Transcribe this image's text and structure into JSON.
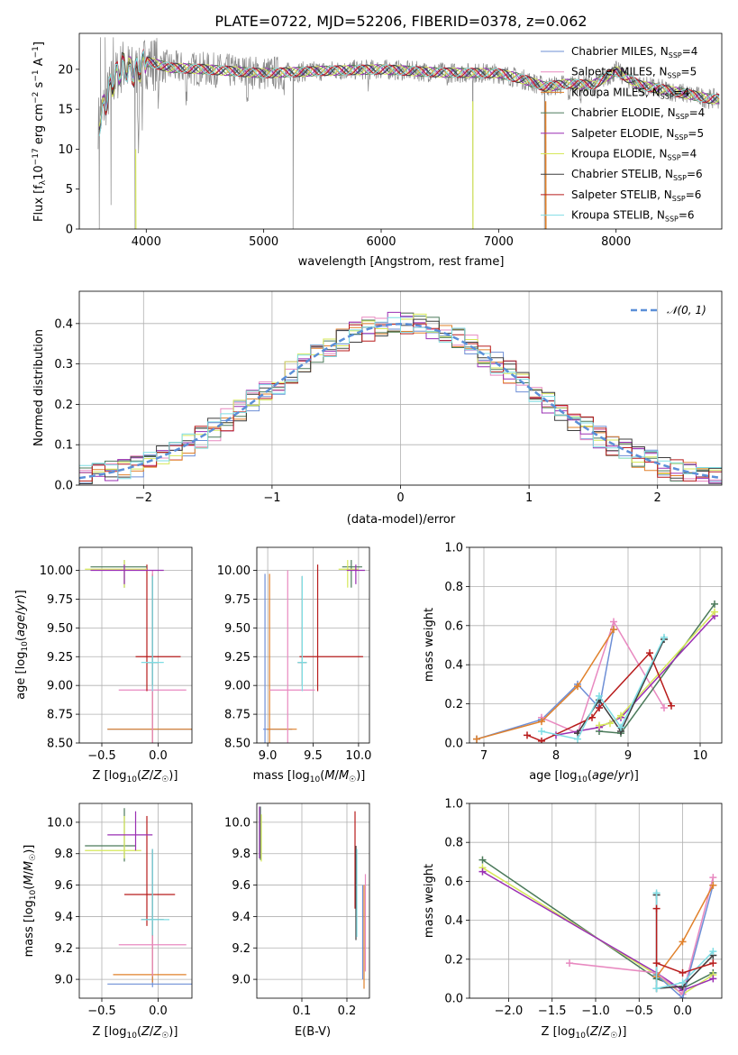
{
  "colors": {
    "chabrier_miles": "#6e8fd6",
    "salpeter_miles": "#e889c0",
    "kroupa_miles": "#e0802a",
    "chabrier_elodie": "#4b7a5a",
    "salpeter_elodie": "#9a2fb3",
    "kroupa_elodie": "#d6e85a",
    "chabrier_stelib": "#3d3d3d",
    "salpeter_stelib": "#b81c1c",
    "kroupa_stelib": "#7fdde4",
    "data_grey": "#888888",
    "normal_dash": "#5b8fd8"
  },
  "chart_data": [
    {
      "id": "spectrum",
      "type": "line",
      "title": "PLATE=0722, MJD=52206, FIBERID=0378, z=0.062",
      "xlabel": "wavelength [Angstrom, rest frame]",
      "ylabel": "Flux [f_λ 10^-17 erg cm^-2 s^-1 A^-1]",
      "xlim": [
        3430,
        8900
      ],
      "ylim": [
        0,
        24.5
      ],
      "xticks": [
        4000,
        5000,
        6000,
        7000,
        8000
      ],
      "yticks": [
        0,
        5,
        10,
        15,
        20
      ],
      "grid": false,
      "legend_position": "upper right",
      "series": [
        {
          "name": "Chabrier MILES, N_SSP=4",
          "color_key": "chabrier_miles"
        },
        {
          "name": "Salpeter MILES, N_SSP=5",
          "color_key": "salpeter_miles"
        },
        {
          "name": "Kroupa MILES, N_SSP=4",
          "color_key": "kroupa_miles"
        },
        {
          "name": "Chabrier ELODIE, N_SSP=4",
          "color_key": "chabrier_elodie"
        },
        {
          "name": "Salpeter ELODIE, N_SSP=5",
          "color_key": "salpeter_elodie"
        },
        {
          "name": "Kroupa ELODIE, N_SSP=4",
          "color_key": "kroupa_elodie"
        },
        {
          "name": "Chabrier STELIB, N_SSP=6",
          "color_key": "chabrier_stelib"
        },
        {
          "name": "Salpeter STELIB, N_SSP=6",
          "color_key": "salpeter_stelib"
        },
        {
          "name": "Kroupa STELIB, N_SSP=6",
          "color_key": "kroupa_stelib"
        }
      ],
      "continuum": {
        "x": [
          3600,
          3700,
          3800,
          3900,
          4000,
          4200,
          4500,
          5000,
          5500,
          6000,
          6500,
          7000,
          7200,
          7400,
          7600,
          7800,
          8000,
          8200,
          8500,
          8800
        ],
        "y": [
          13.5,
          18,
          20.5,
          19.5,
          21,
          20.2,
          20,
          19.5,
          19.8,
          20,
          19.6,
          19.5,
          18.8,
          17.8,
          18.2,
          18,
          19.8,
          18,
          17.2,
          16.3
        ]
      }
    },
    {
      "id": "residuals",
      "type": "step",
      "xlabel": "(data-model)/error",
      "ylabel": "Normed distribution",
      "xlim": [
        -2.5,
        2.5
      ],
      "ylim": [
        0,
        0.48
      ],
      "xticks": [
        -2,
        -1,
        0,
        1,
        2
      ],
      "yticks": [
        0.0,
        0.1,
        0.2,
        0.3,
        0.4
      ],
      "grid": true,
      "legend": [
        "N(0,1)"
      ],
      "legend_position": "upper right",
      "bin_width": 0.1
    },
    {
      "id": "age_vs_Z",
      "type": "errorbar",
      "xlabel": "Z [log10(Z/Z☉)]",
      "ylabel": "age [log10(age/yr)]",
      "xlim": [
        -0.7,
        0.3
      ],
      "ylim": [
        8.5,
        10.2
      ],
      "xticks": [
        -0.5,
        0.0
      ],
      "yticks": [
        8.5,
        8.75,
        9.0,
        9.25,
        9.5,
        9.75,
        10.0
      ],
      "grid": true,
      "points": [
        {
          "c": "chabrier_miles",
          "x": -0.05,
          "xe": [
            0.4,
            0.35
          ],
          "y": 8.62,
          "ye": [
            0.12,
            1.35
          ]
        },
        {
          "c": "kroupa_miles",
          "x": -0.05,
          "xe": [
            0.4,
            0.35
          ],
          "y": 8.62,
          "ye": [
            0.12,
            1.35
          ]
        },
        {
          "c": "salpeter_miles",
          "x": -0.05,
          "xe": [
            0.3,
            0.3
          ],
          "y": 8.96,
          "ye": [
            0.46,
            1.04
          ]
        },
        {
          "c": "salpeter_stelib",
          "x": -0.1,
          "xe": [
            0.1,
            0.3
          ],
          "y": 9.25,
          "ye": [
            0.3,
            0.8
          ]
        },
        {
          "c": "chabrier_elodie",
          "x": -0.3,
          "xe": [
            0.3,
            0.2
          ],
          "y": 10.03,
          "ye": [
            0.18,
            0.06
          ]
        },
        {
          "c": "kroupa_elodie",
          "x": -0.3,
          "xe": [
            0.35,
            0.2
          ],
          "y": 10.01,
          "ye": [
            0.16,
            0.08
          ]
        },
        {
          "c": "salpeter_elodie",
          "x": -0.3,
          "xe": [
            0.3,
            0.35
          ],
          "y": 10.0,
          "ye": [
            0.12,
            0.05
          ]
        },
        {
          "c": "chabrier_stelib",
          "x": -0.05,
          "xe": [
            0.05,
            0.05
          ],
          "y": 9.2,
          "ye": [
            0.2,
            0.75
          ]
        },
        {
          "c": "kroupa_stelib",
          "x": -0.05,
          "xe": [
            0.1,
            0.1
          ],
          "y": 9.2,
          "ye": [
            0.25,
            0.75
          ]
        }
      ]
    },
    {
      "id": "age_vs_mass",
      "type": "errorbar",
      "xlabel": "mass [log10(M/M☉)]",
      "ylabel": "",
      "xlim": [
        8.88,
        10.12
      ],
      "ylim": [
        8.5,
        10.2
      ],
      "xticks": [
        9.0,
        9.5,
        10.0
      ],
      "yticks": [
        8.5,
        8.75,
        9.0,
        9.25,
        9.5,
        9.75,
        10.0
      ],
      "grid": true,
      "points": [
        {
          "c": "chabrier_miles",
          "x": 8.97,
          "xe": [
            0.02,
            0.3
          ],
          "y": 8.62,
          "ye": [
            0.12,
            1.35
          ]
        },
        {
          "c": "kroupa_miles",
          "x": 9.02,
          "xe": [
            0.03,
            0.3
          ],
          "y": 8.62,
          "ye": [
            0.12,
            1.35
          ]
        },
        {
          "c": "salpeter_miles",
          "x": 9.22,
          "xe": [
            0.2,
            0.3
          ],
          "y": 8.96,
          "ye": [
            0.46,
            1.04
          ]
        },
        {
          "c": "salpeter_stelib",
          "x": 9.55,
          "xe": [
            0.2,
            0.5
          ],
          "y": 9.25,
          "ye": [
            0.3,
            0.8
          ]
        },
        {
          "c": "chabrier_stelib",
          "x": 9.38,
          "xe": [
            0.05,
            0.05
          ],
          "y": 9.2,
          "ye": [
            0.2,
            0.75
          ]
        },
        {
          "c": "kroupa_stelib",
          "x": 9.38,
          "xe": [
            0.05,
            0.05
          ],
          "y": 9.2,
          "ye": [
            0.25,
            0.75
          ]
        },
        {
          "c": "chabrier_elodie",
          "x": 9.92,
          "xe": [
            0.1,
            0.12
          ],
          "y": 10.03,
          "ye": [
            0.18,
            0.06
          ]
        },
        {
          "c": "kroupa_elodie",
          "x": 9.88,
          "xe": [
            0.1,
            0.12
          ],
          "y": 10.01,
          "ye": [
            0.16,
            0.08
          ]
        },
        {
          "c": "salpeter_elodie",
          "x": 9.97,
          "xe": [
            0.1,
            0.1
          ],
          "y": 10.0,
          "ye": [
            0.12,
            0.05
          ]
        }
      ]
    },
    {
      "id": "weight_vs_age",
      "type": "line",
      "xlabel": "age [log10(age/yr)]",
      "ylabel": "mass weight",
      "xlim": [
        6.8,
        10.3
      ],
      "ylim": [
        0.0,
        1.0
      ],
      "xticks": [
        7,
        8,
        9,
        10
      ],
      "yticks": [
        0.0,
        0.2,
        0.4,
        0.6,
        0.8,
        1.0
      ],
      "grid": true,
      "series": [
        {
          "c": "chabrier_miles",
          "x": [
            6.9,
            7.8,
            8.3,
            8.6,
            8.8
          ],
          "y": [
            0.02,
            0.12,
            0.3,
            0.18,
            0.58
          ]
        },
        {
          "c": "salpeter_miles",
          "x": [
            7.8,
            8.3,
            8.8,
            9.5
          ],
          "y": [
            0.13,
            0.05,
            0.62,
            0.18
          ]
        },
        {
          "c": "kroupa_miles",
          "x": [
            6.9,
            7.8,
            8.3,
            8.8
          ],
          "y": [
            0.02,
            0.11,
            0.29,
            0.58
          ]
        },
        {
          "c": "chabrier_elodie",
          "x": [
            8.6,
            8.9,
            10.2
          ],
          "y": [
            0.06,
            0.05,
            0.71
          ]
        },
        {
          "c": "salpeter_elodie",
          "x": [
            8.0,
            8.6,
            8.9,
            10.2
          ],
          "y": [
            0.04,
            0.08,
            0.13,
            0.65
          ]
        },
        {
          "c": "kroupa_elodie",
          "x": [
            8.6,
            8.75,
            8.9,
            10.2
          ],
          "y": [
            0.09,
            0.1,
            0.14,
            0.67
          ]
        },
        {
          "c": "chabrier_stelib",
          "x": [
            8.3,
            8.6,
            8.9,
            9.5
          ],
          "y": [
            0.05,
            0.22,
            0.06,
            0.53
          ]
        },
        {
          "c": "salpeter_stelib",
          "x": [
            7.6,
            7.8,
            8.5,
            8.6,
            9.3,
            9.6
          ],
          "y": [
            0.04,
            0.01,
            0.13,
            0.18,
            0.46,
            0.19
          ]
        },
        {
          "c": "kroupa_stelib",
          "x": [
            7.8,
            8.3,
            8.6,
            8.9,
            9.5
          ],
          "y": [
            0.06,
            0.02,
            0.24,
            0.08,
            0.54
          ]
        }
      ]
    },
    {
      "id": "mass_vs_Z",
      "type": "errorbar",
      "xlabel": "Z [log10(Z/Z☉)]",
      "ylabel": "mass [log10(M/M☉)]",
      "xlim": [
        -0.7,
        0.3
      ],
      "ylim": [
        8.88,
        10.12
      ],
      "xticks": [
        -0.5,
        0.0
      ],
      "yticks": [
        9.0,
        9.2,
        9.4,
        9.6,
        9.8,
        10.0
      ],
      "grid": true,
      "points": [
        {
          "c": "chabrier_miles",
          "x": -0.05,
          "xe": [
            0.4,
            0.35
          ],
          "y": 8.97,
          "ye": [
            0.02,
            0.65
          ]
        },
        {
          "c": "kroupa_miles",
          "x": -0.05,
          "xe": [
            0.35,
            0.3
          ],
          "y": 9.03,
          "ye": [
            0.05,
            0.55
          ]
        },
        {
          "c": "salpeter_miles",
          "x": -0.05,
          "xe": [
            0.3,
            0.3
          ],
          "y": 9.22,
          "ye": [
            0.2,
            0.6
          ]
        },
        {
          "c": "salpeter_stelib",
          "x": -0.1,
          "xe": [
            0.2,
            0.25
          ],
          "y": 9.54,
          "ye": [
            0.2,
            0.5
          ]
        },
        {
          "c": "chabrier_stelib",
          "x": -0.05,
          "xe": [
            0.1,
            0.1
          ],
          "y": 9.38,
          "ye": [
            0.1,
            0.45
          ]
        },
        {
          "c": "kroupa_stelib",
          "x": -0.05,
          "xe": [
            0.1,
            0.15
          ],
          "y": 9.38,
          "ye": [
            0.1,
            0.45
          ]
        },
        {
          "c": "chabrier_elodie",
          "x": -0.3,
          "xe": [
            0.35,
            0.1
          ],
          "y": 9.85,
          "ye": [
            0.1,
            0.24
          ]
        },
        {
          "c": "kroupa_elodie",
          "x": -0.3,
          "xe": [
            0.35,
            0.15
          ],
          "y": 9.82,
          "ye": [
            0.05,
            0.22
          ]
        },
        {
          "c": "salpeter_elodie",
          "x": -0.2,
          "xe": [
            0.25,
            0.15
          ],
          "y": 9.92,
          "ye": [
            0.1,
            0.15
          ]
        }
      ]
    },
    {
      "id": "mass_vs_ebv",
      "type": "errorbar",
      "xlabel": "E(B-V)",
      "ylabel": "",
      "xlim": [
        0.0,
        0.25
      ],
      "ylim": [
        8.88,
        10.12
      ],
      "xticks": [
        0.1,
        0.2
      ],
      "yticks": [
        9.0,
        9.2,
        9.4,
        9.6,
        9.8,
        10.0
      ],
      "grid": true,
      "points": [
        {
          "c": "chabrier_miles",
          "x": 0.235,
          "xe": [
            0,
            0
          ],
          "y": 9.3,
          "ye": [
            0.3,
            0.3
          ]
        },
        {
          "c": "kroupa_miles",
          "x": 0.238,
          "xe": [
            0,
            0
          ],
          "y": 9.27,
          "ye": [
            0.33,
            0.33
          ]
        },
        {
          "c": "salpeter_miles",
          "x": 0.241,
          "xe": [
            0,
            0
          ],
          "y": 9.35,
          "ye": [
            0.3,
            0.32
          ]
        },
        {
          "c": "salpeter_stelib",
          "x": 0.218,
          "xe": [
            0,
            0
          ],
          "y": 9.75,
          "ye": [
            0.3,
            0.32
          ]
        },
        {
          "c": "chabrier_stelib",
          "x": 0.22,
          "xe": [
            0,
            0
          ],
          "y": 9.55,
          "ye": [
            0.3,
            0.3
          ]
        },
        {
          "c": "kroupa_stelib",
          "x": 0.222,
          "xe": [
            0,
            0
          ],
          "y": 9.55,
          "ye": [
            0.28,
            0.28
          ]
        },
        {
          "c": "chabrier_elodie",
          "x": 0.008,
          "xe": [
            0,
            0
          ],
          "y": 9.93,
          "ye": [
            0.17,
            0.17
          ]
        },
        {
          "c": "kroupa_elodie",
          "x": 0.01,
          "xe": [
            0,
            0
          ],
          "y": 9.9,
          "ye": [
            0.15,
            0.15
          ]
        },
        {
          "c": "salpeter_elodie",
          "x": 0.006,
          "xe": [
            0,
            0
          ],
          "y": 9.94,
          "ye": [
            0.17,
            0.16
          ]
        }
      ]
    },
    {
      "id": "weight_vs_Z",
      "type": "line",
      "xlabel": "Z [log10(Z/Z☉)]",
      "ylabel": "mass weight",
      "xlim": [
        -2.45,
        0.45
      ],
      "ylim": [
        0.0,
        1.0
      ],
      "xticks": [
        -2.0,
        -1.5,
        -1.0,
        -0.5,
        0.0
      ],
      "yticks": [
        0.0,
        0.2,
        0.4,
        0.6,
        0.8,
        1.0
      ],
      "grid": true,
      "series": [
        {
          "c": "chabrier_elodie",
          "x": [
            -2.3,
            -0.3,
            0.0,
            0.35
          ],
          "y": [
            0.71,
            0.1,
            0.05,
            0.13
          ]
        },
        {
          "c": "kroupa_elodie",
          "x": [
            -2.3,
            -0.3,
            0.0,
            0.35
          ],
          "y": [
            0.67,
            0.12,
            0.02,
            0.12
          ]
        },
        {
          "c": "salpeter_elodie",
          "x": [
            -2.3,
            -0.3,
            0.0,
            0.35
          ],
          "y": [
            0.65,
            0.13,
            0.04,
            0.1
          ]
        },
        {
          "c": "salpeter_miles",
          "x": [
            -1.3,
            -0.3,
            0.0,
            0.35
          ],
          "y": [
            0.18,
            0.13,
            0.02,
            0.62
          ]
        },
        {
          "c": "chabrier_miles",
          "x": [
            -0.3,
            0.0,
            0.35
          ],
          "y": [
            0.12,
            0.0,
            0.58
          ]
        },
        {
          "c": "kroupa_miles",
          "x": [
            -0.3,
            0.0,
            0.35
          ],
          "y": [
            0.11,
            0.29,
            0.58
          ]
        },
        {
          "c": "chabrier_stelib",
          "x": [
            -0.3,
            -0.3,
            0.0,
            0.35
          ],
          "y": [
            0.53,
            0.05,
            0.06,
            0.22
          ]
        },
        {
          "c": "kroupa_stelib",
          "x": [
            -0.3,
            -0.3,
            0.0,
            0.35
          ],
          "y": [
            0.54,
            0.05,
            0.08,
            0.24
          ]
        },
        {
          "c": "salpeter_stelib",
          "x": [
            -0.3,
            -0.3,
            0.0,
            0.35
          ],
          "y": [
            0.46,
            0.18,
            0.13,
            0.18
          ]
        }
      ]
    }
  ]
}
